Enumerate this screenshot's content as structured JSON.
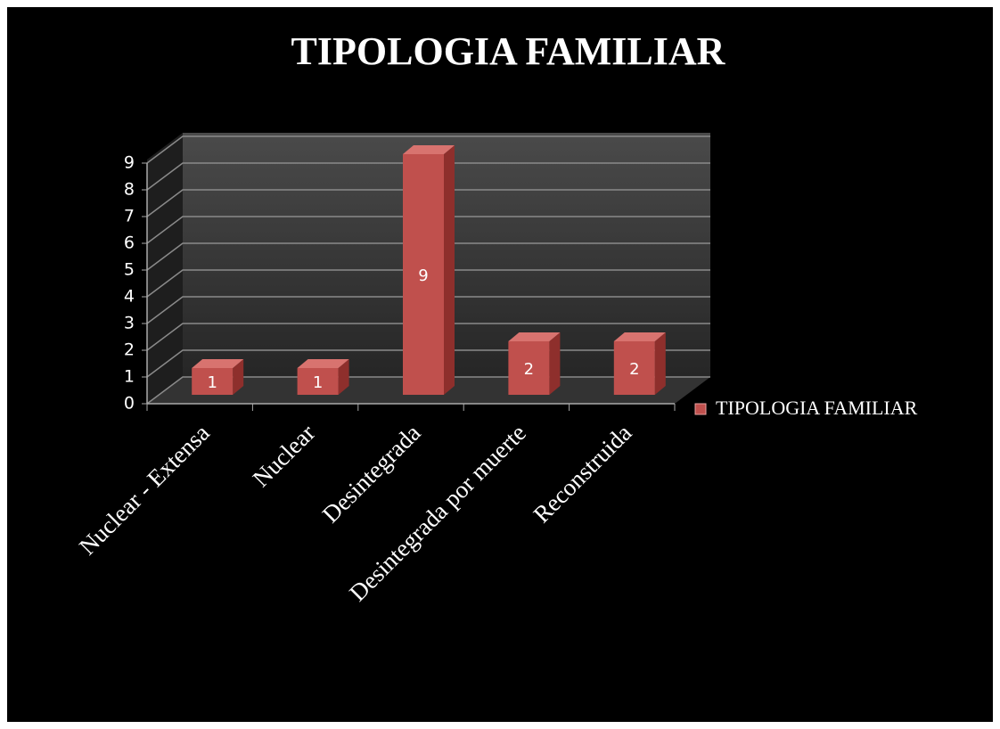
{
  "chart_data": {
    "type": "bar3d",
    "title": "TIPOLOGIA FAMILIAR",
    "categories": [
      "Nuclear - Extensa",
      "Nuclear",
      "Desintegrada",
      "Desintegrada por muerte",
      "Reconstruida"
    ],
    "series": [
      {
        "name": "TIPOLOGIA FAMILIAR",
        "color": "#c0504d",
        "values": [
          1,
          1,
          9,
          2,
          2
        ]
      }
    ],
    "ylim": [
      0,
      9
    ],
    "yticks": [
      0,
      1,
      2,
      3,
      4,
      5,
      6,
      7,
      8,
      9
    ],
    "grid": true,
    "legend": "right"
  }
}
